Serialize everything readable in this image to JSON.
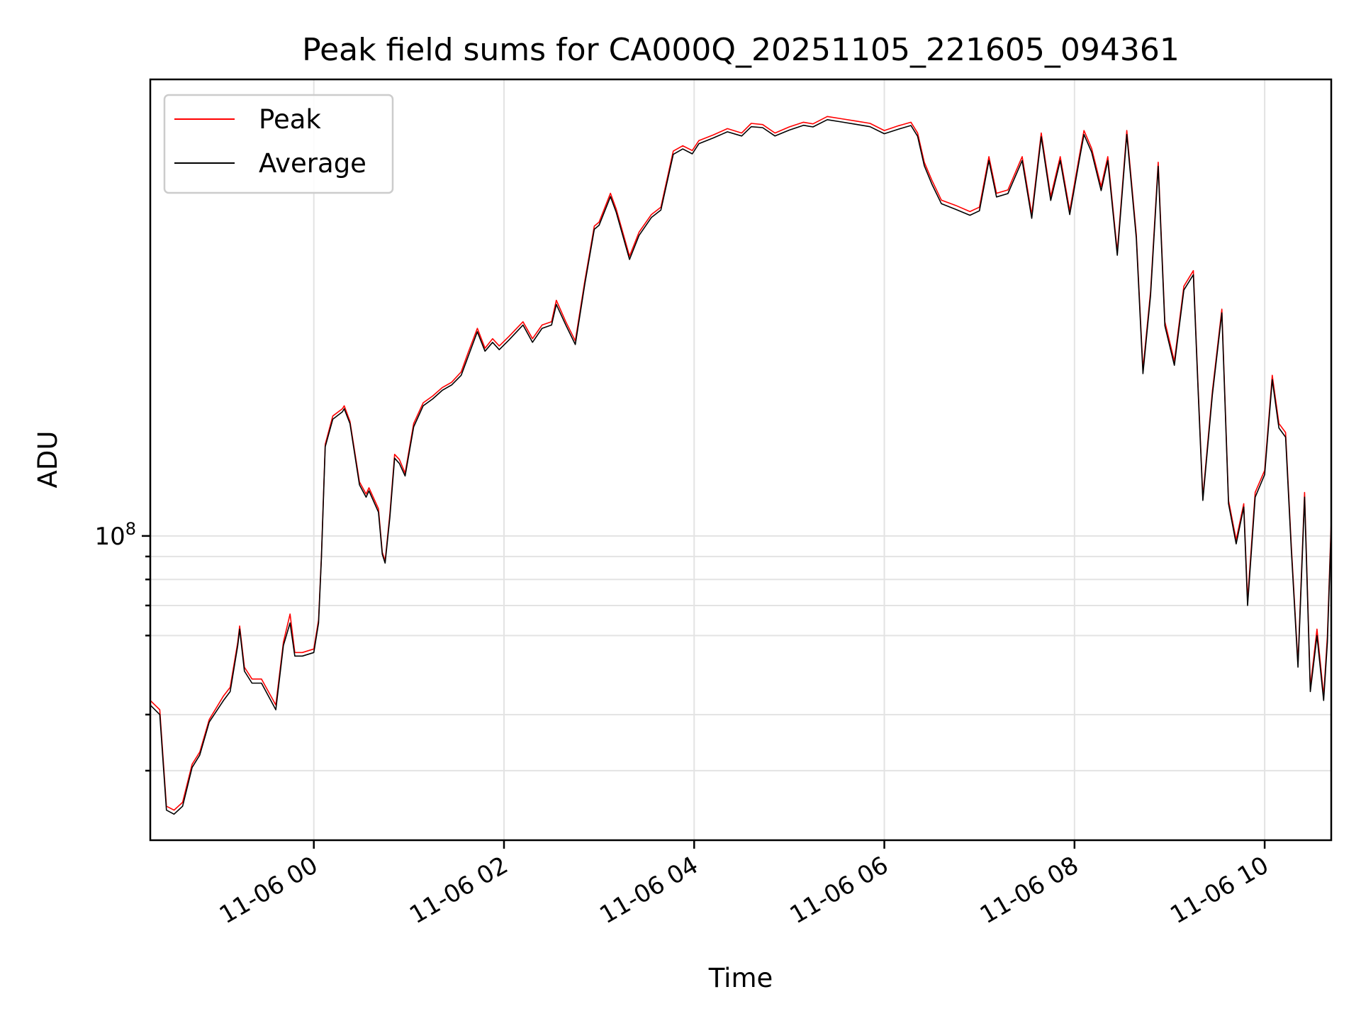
{
  "chart_data": {
    "type": "line",
    "title": "Peak field sums for CA000Q_20251105_221605_094361",
    "xlabel": "Time",
    "ylabel": "ADU",
    "x_ticks": [
      "11-06 00",
      "11-06 02",
      "11-06 04",
      "11-06 06",
      "11-06 08",
      "11-06 10"
    ],
    "x_tick_hours": [
      0,
      2,
      4,
      6,
      8,
      10
    ],
    "xlim_hours": [
      -1.72,
      10.7
    ],
    "y_scale": "log",
    "y_tick_label": "10^8",
    "y_tick_value": 100000000,
    "y_minor_ticks": [
      30000000,
      40000000,
      60000000,
      70000000,
      80000000,
      90000000
    ],
    "ylim": [
      21000000,
      1040000000
    ],
    "grid": true,
    "legend_position": "upper-left",
    "series": [
      {
        "name": "Peak",
        "color": "#ff0000",
        "points": [
          [
            -1.72,
            43000000
          ],
          [
            -1.62,
            41000000
          ],
          [
            -1.55,
            25000000
          ],
          [
            -1.47,
            24500000
          ],
          [
            -1.38,
            25500000
          ],
          [
            -1.28,
            31000000
          ],
          [
            -1.2,
            33000000
          ],
          [
            -1.1,
            39000000
          ],
          [
            -0.95,
            44000000
          ],
          [
            -0.88,
            46000000
          ],
          [
            -0.8,
            58000000
          ],
          [
            -0.78,
            63000000
          ],
          [
            -0.73,
            51000000
          ],
          [
            -0.65,
            48000000
          ],
          [
            -0.55,
            48000000
          ],
          [
            -0.4,
            42000000
          ],
          [
            -0.32,
            58000000
          ],
          [
            -0.25,
            67000000
          ],
          [
            -0.2,
            55000000
          ],
          [
            -0.12,
            55000000
          ],
          [
            0.0,
            56000000
          ],
          [
            0.05,
            65000000
          ],
          [
            0.08,
            90000000
          ],
          [
            0.12,
            160000000
          ],
          [
            0.2,
            185000000
          ],
          [
            0.3,
            192000000
          ],
          [
            0.32,
            195000000
          ],
          [
            0.38,
            180000000
          ],
          [
            0.48,
            132000000
          ],
          [
            0.55,
            124000000
          ],
          [
            0.58,
            128000000
          ],
          [
            0.68,
            115000000
          ],
          [
            0.72,
            92000000
          ],
          [
            0.75,
            88000000
          ],
          [
            0.8,
            112000000
          ],
          [
            0.85,
            152000000
          ],
          [
            0.9,
            148000000
          ],
          [
            0.96,
            138000000
          ],
          [
            1.05,
            178000000
          ],
          [
            1.15,
            198000000
          ],
          [
            1.25,
            205000000
          ],
          [
            1.35,
            214000000
          ],
          [
            1.45,
            220000000
          ],
          [
            1.55,
            232000000
          ],
          [
            1.62,
            255000000
          ],
          [
            1.72,
            290000000
          ],
          [
            1.8,
            262000000
          ],
          [
            1.88,
            275000000
          ],
          [
            1.95,
            265000000
          ],
          [
            2.05,
            278000000
          ],
          [
            2.2,
            300000000
          ],
          [
            2.3,
            275000000
          ],
          [
            2.4,
            295000000
          ],
          [
            2.5,
            300000000
          ],
          [
            2.55,
            335000000
          ],
          [
            2.65,
            300000000
          ],
          [
            2.75,
            272000000
          ],
          [
            2.85,
            370000000
          ],
          [
            2.95,
            490000000
          ],
          [
            3.0,
            500000000
          ],
          [
            3.12,
            580000000
          ],
          [
            3.18,
            535000000
          ],
          [
            3.32,
            420000000
          ],
          [
            3.42,
            475000000
          ],
          [
            3.55,
            520000000
          ],
          [
            3.65,
            540000000
          ],
          [
            3.78,
            720000000
          ],
          [
            3.88,
            740000000
          ],
          [
            3.98,
            722000000
          ],
          [
            4.05,
            760000000
          ],
          [
            4.2,
            782000000
          ],
          [
            4.35,
            808000000
          ],
          [
            4.5,
            790000000
          ],
          [
            4.6,
            830000000
          ],
          [
            4.72,
            825000000
          ],
          [
            4.85,
            790000000
          ],
          [
            5.0,
            815000000
          ],
          [
            5.15,
            835000000
          ],
          [
            5.25,
            828000000
          ],
          [
            5.4,
            860000000
          ],
          [
            5.55,
            850000000
          ],
          [
            5.7,
            840000000
          ],
          [
            5.85,
            830000000
          ],
          [
            6.0,
            800000000
          ],
          [
            6.15,
            820000000
          ],
          [
            6.28,
            835000000
          ],
          [
            6.35,
            790000000
          ],
          [
            6.42,
            680000000
          ],
          [
            6.5,
            620000000
          ],
          [
            6.6,
            560000000
          ],
          [
            6.75,
            545000000
          ],
          [
            6.9,
            528000000
          ],
          [
            7.0,
            540000000
          ],
          [
            7.1,
            700000000
          ],
          [
            7.18,
            580000000
          ],
          [
            7.3,
            590000000
          ],
          [
            7.45,
            700000000
          ],
          [
            7.55,
            520000000
          ],
          [
            7.65,
            790000000
          ],
          [
            7.75,
            570000000
          ],
          [
            7.85,
            700000000
          ],
          [
            7.95,
            530000000
          ],
          [
            8.05,
            700000000
          ],
          [
            8.1,
            800000000
          ],
          [
            8.18,
            730000000
          ],
          [
            8.28,
            600000000
          ],
          [
            8.35,
            700000000
          ],
          [
            8.45,
            430000000
          ],
          [
            8.55,
            800000000
          ],
          [
            8.65,
            470000000
          ],
          [
            8.72,
            235000000
          ],
          [
            8.8,
            350000000
          ],
          [
            8.88,
            680000000
          ],
          [
            8.95,
            300000000
          ],
          [
            9.05,
            245000000
          ],
          [
            9.15,
            360000000
          ],
          [
            9.25,
            390000000
          ],
          [
            9.3,
            215000000
          ],
          [
            9.35,
            122000000
          ],
          [
            9.45,
            210000000
          ],
          [
            9.55,
            320000000
          ],
          [
            9.62,
            120000000
          ],
          [
            9.7,
            98000000
          ],
          [
            9.78,
            118000000
          ],
          [
            9.82,
            72000000
          ],
          [
            9.9,
            125000000
          ],
          [
            10.0,
            140000000
          ],
          [
            10.08,
            228000000
          ],
          [
            10.15,
            178000000
          ],
          [
            10.22,
            170000000
          ],
          [
            10.28,
            95000000
          ],
          [
            10.35,
            52000000
          ],
          [
            10.42,
            125000000
          ],
          [
            10.48,
            46000000
          ],
          [
            10.55,
            62000000
          ],
          [
            10.62,
            44000000
          ],
          [
            10.66,
            60000000
          ],
          [
            10.7,
            108000000
          ]
        ]
      },
      {
        "name": "Average",
        "color": "#000000",
        "points": [
          [
            -1.72,
            42000000
          ],
          [
            -1.62,
            40000000
          ],
          [
            -1.55,
            24500000
          ],
          [
            -1.47,
            24000000
          ],
          [
            -1.38,
            25000000
          ],
          [
            -1.28,
            30500000
          ],
          [
            -1.2,
            32500000
          ],
          [
            -1.1,
            38500000
          ],
          [
            -0.95,
            43000000
          ],
          [
            -0.88,
            45000000
          ],
          [
            -0.8,
            57000000
          ],
          [
            -0.78,
            62000000
          ],
          [
            -0.73,
            50000000
          ],
          [
            -0.65,
            47000000
          ],
          [
            -0.55,
            47000000
          ],
          [
            -0.4,
            41000000
          ],
          [
            -0.32,
            57000000
          ],
          [
            -0.25,
            64000000
          ],
          [
            -0.2,
            54000000
          ],
          [
            -0.12,
            54000000
          ],
          [
            0.0,
            55000000
          ],
          [
            0.05,
            64000000
          ],
          [
            0.08,
            89000000
          ],
          [
            0.12,
            158000000
          ],
          [
            0.2,
            182000000
          ],
          [
            0.3,
            189000000
          ],
          [
            0.32,
            192000000
          ],
          [
            0.38,
            178000000
          ],
          [
            0.48,
            130000000
          ],
          [
            0.55,
            122000000
          ],
          [
            0.58,
            126000000
          ],
          [
            0.68,
            113000000
          ],
          [
            0.72,
            91000000
          ],
          [
            0.75,
            87000000
          ],
          [
            0.8,
            110000000
          ],
          [
            0.85,
            149000000
          ],
          [
            0.9,
            145000000
          ],
          [
            0.96,
            136000000
          ],
          [
            1.05,
            175000000
          ],
          [
            1.15,
            195000000
          ],
          [
            1.25,
            202000000
          ],
          [
            1.35,
            211000000
          ],
          [
            1.45,
            217000000
          ],
          [
            1.55,
            228000000
          ],
          [
            1.62,
            250000000
          ],
          [
            1.72,
            285000000
          ],
          [
            1.8,
            258000000
          ],
          [
            1.88,
            270000000
          ],
          [
            1.95,
            260000000
          ],
          [
            2.05,
            273000000
          ],
          [
            2.2,
            295000000
          ],
          [
            2.3,
            270000000
          ],
          [
            2.4,
            290000000
          ],
          [
            2.5,
            295000000
          ],
          [
            2.55,
            328000000
          ],
          [
            2.65,
            295000000
          ],
          [
            2.75,
            267000000
          ],
          [
            2.85,
            364000000
          ],
          [
            2.95,
            482000000
          ],
          [
            3.0,
            492000000
          ],
          [
            3.12,
            570000000
          ],
          [
            3.18,
            526000000
          ],
          [
            3.32,
            413000000
          ],
          [
            3.42,
            467000000
          ],
          [
            3.55,
            512000000
          ],
          [
            3.65,
            532000000
          ],
          [
            3.78,
            708000000
          ],
          [
            3.88,
            728000000
          ],
          [
            3.98,
            710000000
          ],
          [
            4.05,
            748000000
          ],
          [
            4.2,
            770000000
          ],
          [
            4.35,
            795000000
          ],
          [
            4.5,
            778000000
          ],
          [
            4.6,
            816000000
          ],
          [
            4.72,
            812000000
          ],
          [
            4.85,
            778000000
          ],
          [
            5.0,
            802000000
          ],
          [
            5.15,
            822000000
          ],
          [
            5.25,
            815000000
          ],
          [
            5.4,
            846000000
          ],
          [
            5.55,
            836000000
          ],
          [
            5.7,
            826000000
          ],
          [
            5.85,
            816000000
          ],
          [
            6.0,
            787000000
          ],
          [
            6.15,
            806000000
          ],
          [
            6.28,
            821000000
          ],
          [
            6.35,
            777000000
          ],
          [
            6.42,
            668000000
          ],
          [
            6.5,
            608000000
          ],
          [
            6.6,
            550000000
          ],
          [
            6.75,
            534000000
          ],
          [
            6.9,
            518000000
          ],
          [
            7.0,
            530000000
          ],
          [
            7.1,
            686000000
          ],
          [
            7.18,
            569000000
          ],
          [
            7.3,
            579000000
          ],
          [
            7.45,
            686000000
          ],
          [
            7.55,
            510000000
          ],
          [
            7.65,
            775000000
          ],
          [
            7.75,
            559000000
          ],
          [
            7.85,
            686000000
          ],
          [
            7.95,
            520000000
          ],
          [
            8.05,
            686000000
          ],
          [
            8.1,
            784000000
          ],
          [
            8.18,
            716000000
          ],
          [
            8.28,
            588000000
          ],
          [
            8.35,
            686000000
          ],
          [
            8.45,
            422000000
          ],
          [
            8.55,
            784000000
          ],
          [
            8.65,
            461000000
          ],
          [
            8.72,
            230000000
          ],
          [
            8.8,
            343000000
          ],
          [
            8.88,
            666000000
          ],
          [
            8.95,
            294000000
          ],
          [
            9.05,
            240000000
          ],
          [
            9.15,
            353000000
          ],
          [
            9.25,
            382000000
          ],
          [
            9.3,
            211000000
          ],
          [
            9.35,
            120000000
          ],
          [
            9.45,
            206000000
          ],
          [
            9.55,
            314000000
          ],
          [
            9.62,
            118000000
          ],
          [
            9.7,
            96000000
          ],
          [
            9.78,
            116000000
          ],
          [
            9.82,
            70000000
          ],
          [
            9.9,
            122000000
          ],
          [
            10.0,
            137000000
          ],
          [
            10.08,
            223000000
          ],
          [
            10.15,
            174000000
          ],
          [
            10.22,
            166000000
          ],
          [
            10.28,
            93000000
          ],
          [
            10.35,
            51000000
          ],
          [
            10.42,
            122000000
          ],
          [
            10.48,
            45000000
          ],
          [
            10.55,
            60000000
          ],
          [
            10.62,
            43000000
          ],
          [
            10.66,
            58000000
          ],
          [
            10.7,
            105000000
          ]
        ]
      }
    ]
  }
}
